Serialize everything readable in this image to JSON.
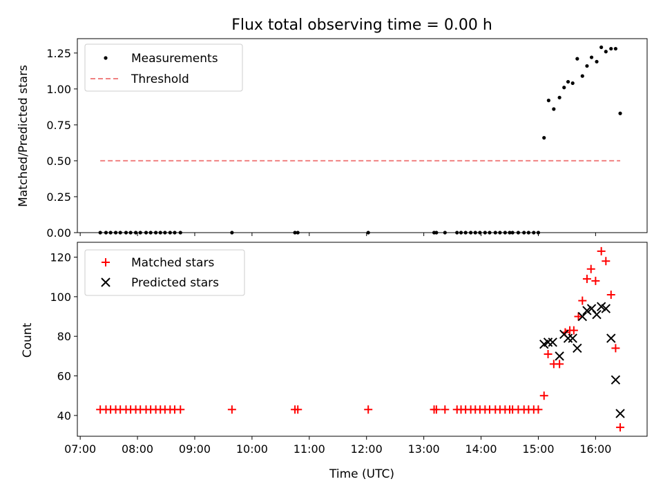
{
  "chart_data": [
    {
      "type": "scatter",
      "title": "Flux total observing time = 0.00 h",
      "xlabel": "",
      "ylabel": "Matched/Predicted stars",
      "xlim": [
        6.95,
        16.9
      ],
      "ylim": [
        0.0,
        1.35
      ],
      "yticks": [
        0.0,
        0.25,
        0.5,
        0.75,
        1.0,
        1.25
      ],
      "ytick_labels": [
        "0.00",
        "0.25",
        "0.50",
        "0.75",
        "1.00",
        "1.25"
      ],
      "xticks": [
        7,
        8,
        9,
        10,
        11,
        12,
        13,
        14,
        15,
        16
      ],
      "legend_position": "top-left",
      "series": [
        {
          "name": "Measurements",
          "marker": "dot",
          "color": "#000000",
          "x": [
            7.35,
            7.45,
            7.53,
            7.62,
            7.7,
            7.8,
            7.88,
            7.97,
            8.05,
            8.15,
            8.23,
            8.32,
            8.4,
            8.48,
            8.57,
            8.65,
            8.75,
            9.65,
            10.75,
            10.8,
            12.03,
            13.18,
            13.22,
            13.37,
            13.58,
            13.65,
            13.73,
            13.82,
            13.9,
            13.98,
            14.07,
            14.15,
            14.25,
            14.33,
            14.42,
            14.5,
            14.55,
            14.65,
            14.75,
            14.83,
            14.92,
            15.0,
            15.1,
            15.18,
            15.27,
            15.37,
            15.45,
            15.52,
            15.6,
            15.68,
            15.77,
            15.85,
            15.93,
            16.02,
            16.1,
            16.18,
            16.27,
            16.35,
            16.43
          ],
          "y": [
            0,
            0,
            0,
            0,
            0,
            0,
            0,
            0,
            0,
            0,
            0,
            0,
            0,
            0,
            0,
            0,
            0,
            0,
            0,
            0,
            0,
            0,
            0,
            0,
            0,
            0,
            0,
            0,
            0,
            0,
            0,
            0,
            0,
            0,
            0,
            0,
            0,
            0,
            0,
            0,
            0,
            0,
            0.66,
            0.92,
            0.86,
            0.94,
            1.01,
            1.05,
            1.04,
            1.21,
            1.09,
            1.16,
            1.22,
            1.19,
            1.29,
            1.26,
            1.28,
            1.28,
            0.83
          ]
        },
        {
          "name": "Threshold",
          "marker": "dashed-line",
          "color": "#f08080",
          "x": [
            7.35,
            16.43
          ],
          "y": [
            0.5,
            0.5
          ]
        }
      ]
    },
    {
      "type": "scatter",
      "title": "",
      "xlabel": "Time (UTC)",
      "ylabel": "Count",
      "xlim": [
        6.95,
        16.9
      ],
      "ylim": [
        29.5,
        127.5
      ],
      "yticks": [
        40,
        60,
        80,
        100,
        120
      ],
      "ytick_labels": [
        "40",
        "60",
        "80",
        "100",
        "120"
      ],
      "xticks": [
        7,
        8,
        9,
        10,
        11,
        12,
        13,
        14,
        15,
        16
      ],
      "xtick_labels": [
        "07:00",
        "08:00",
        "09:00",
        "10:00",
        "11:00",
        "12:00",
        "13:00",
        "14:00",
        "15:00",
        "16:00"
      ],
      "legend_position": "top-left",
      "series": [
        {
          "name": "Matched stars",
          "marker": "plus",
          "color": "#ff0000",
          "x": [
            7.35,
            7.45,
            7.53,
            7.62,
            7.7,
            7.8,
            7.88,
            7.97,
            8.05,
            8.15,
            8.23,
            8.32,
            8.4,
            8.48,
            8.57,
            8.65,
            8.75,
            9.65,
            10.75,
            10.8,
            12.03,
            13.18,
            13.22,
            13.37,
            13.58,
            13.65,
            13.73,
            13.82,
            13.9,
            13.98,
            14.07,
            14.15,
            14.25,
            14.33,
            14.42,
            14.5,
            14.55,
            14.65,
            14.75,
            14.83,
            14.92,
            15.0,
            15.1,
            15.17,
            15.27,
            15.37,
            15.47,
            15.55,
            15.62,
            15.7,
            15.77,
            15.85,
            15.92,
            16.0,
            16.1,
            16.18,
            16.27,
            16.35,
            16.43
          ],
          "y": [
            43,
            43,
            43,
            43,
            43,
            43,
            43,
            43,
            43,
            43,
            43,
            43,
            43,
            43,
            43,
            43,
            43,
            43,
            43,
            43,
            43,
            43,
            43,
            43,
            43,
            43,
            43,
            43,
            43,
            43,
            43,
            43,
            43,
            43,
            43,
            43,
            43,
            43,
            43,
            43,
            43,
            43,
            50,
            71,
            66,
            66,
            82,
            83,
            83,
            90,
            98,
            109,
            114,
            108,
            123,
            118,
            101,
            74,
            34
          ]
        },
        {
          "name": "Predicted stars",
          "marker": "x",
          "color": "#000000",
          "x": [
            15.1,
            15.17,
            15.25,
            15.37,
            15.45,
            15.52,
            15.6,
            15.68,
            15.77,
            15.85,
            15.93,
            16.02,
            16.1,
            16.18,
            16.27,
            16.35,
            16.43
          ],
          "y": [
            76,
            77,
            77,
            70,
            81,
            79,
            79,
            74,
            90,
            93,
            94,
            91,
            95,
            94,
            79,
            58,
            41
          ]
        }
      ]
    }
  ]
}
